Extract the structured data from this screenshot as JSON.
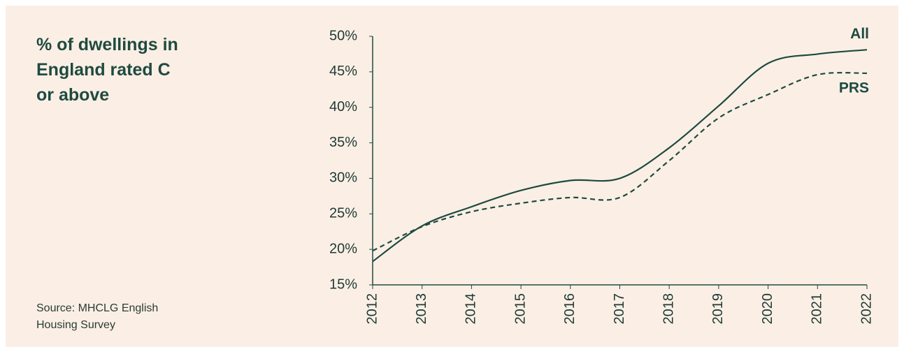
{
  "chart_data": {
    "type": "line",
    "title": "% of dwellings in\nEngland rated C\nor above",
    "source": "Source: MHCLG English\nHousing Survey",
    "x": [
      2012,
      2013,
      2014,
      2015,
      2016,
      2017,
      2018,
      2019,
      2020,
      2021,
      2022
    ],
    "series": [
      {
        "name": "All",
        "color": "#1e4a40",
        "dash": false,
        "values": [
          18.3,
          23.3,
          26.0,
          28.3,
          29.7,
          30.0,
          34.3,
          40.2,
          46.2,
          47.5,
          48.1
        ]
      },
      {
        "name": "PRS",
        "color": "#1e4a40",
        "dash": true,
        "values": [
          19.8,
          23.2,
          25.3,
          26.5,
          27.3,
          27.3,
          32.5,
          38.5,
          41.8,
          44.6,
          44.8
        ]
      }
    ],
    "xlim": [
      2012,
      2022
    ],
    "xticks": [
      2012,
      2013,
      2014,
      2015,
      2016,
      2017,
      2018,
      2019,
      2020,
      2021,
      2022
    ],
    "ylim": [
      15,
      50
    ],
    "yticks": [
      {
        "value": 15,
        "label": "15%"
      },
      {
        "value": 20,
        "label": "20%"
      },
      {
        "value": 25,
        "label": "25%"
      },
      {
        "value": 30,
        "label": "30%"
      },
      {
        "value": 35,
        "label": "35%"
      },
      {
        "value": 40,
        "label": "40%"
      },
      {
        "value": 45,
        "label": "45%"
      },
      {
        "value": 50,
        "label": "50%"
      }
    ],
    "grid": false
  }
}
